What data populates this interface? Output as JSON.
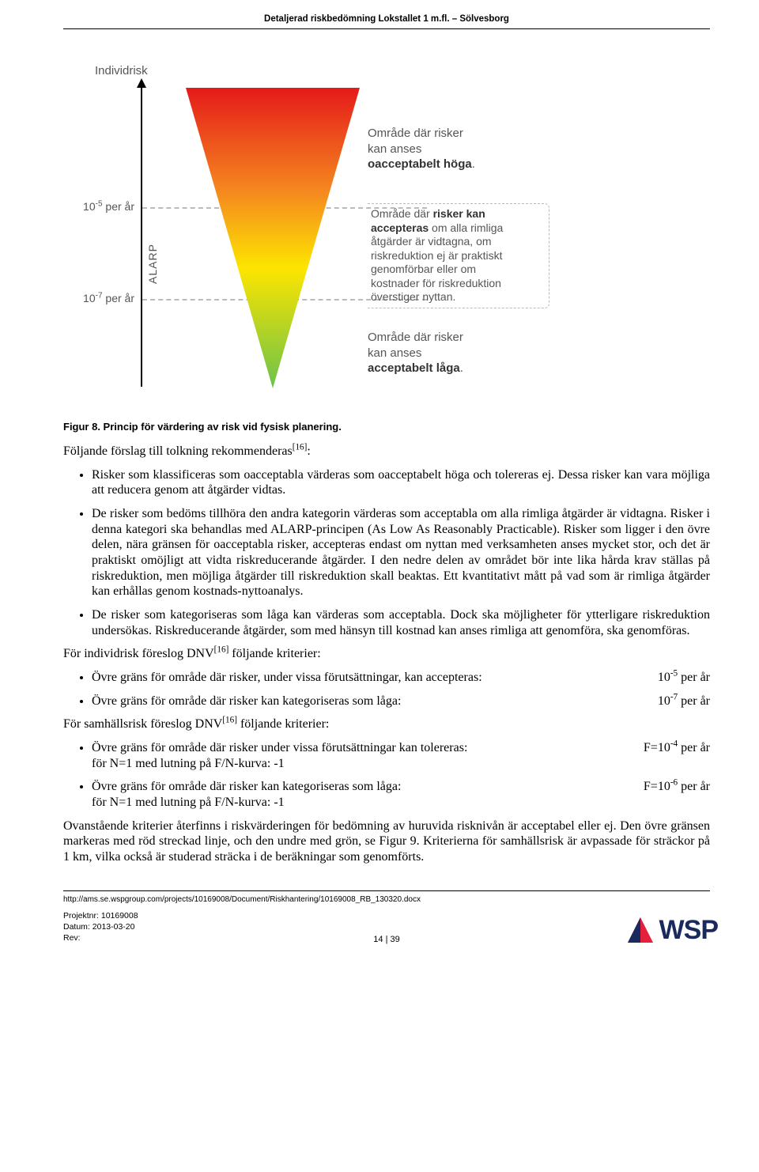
{
  "header": "Detaljerad riskbedömning Lokstallet 1 m.fl. – Sölvesborg",
  "diagram": {
    "y_title": "Individrisk",
    "tick1_html": "10<sup>-5</sup> per år",
    "tick2_html": "10<sup>-7</sup> per år",
    "alarp": "ALARP",
    "colors": {
      "red": "#e51a1a",
      "orange": "#f58a1f",
      "yellow": "#fde500",
      "green": "#6cc24a"
    },
    "annot1_html": "Område där risker<br>kan anses<br><b>oacceptabelt höga</b>.",
    "annot2_html": "Område där <b>risker kan<br>accepteras</b> om alla rimliga<br>åtgärder är vidtagna, om<br>riskreduktion ej är praktiskt<br>genomförbar eller om<br>kostnader för riskreduktion<br>överstiger nyttan.",
    "annot3_html": "Område där risker<br>kan anses<br><b>acceptabelt låga</b>."
  },
  "fig_caption": "Figur 8. Princip för värdering av risk vid fysisk planering.",
  "intro_html": "Följande förslag till tolkning rekommenderas<sup>[16]</sup>:",
  "bullets_main": [
    "Risker som klassificeras som oacceptabla värderas som oacceptabelt höga och tolereras ej. Dessa risker kan vara möjliga att reducera genom att åtgärder vidtas.",
    "De risker som bedöms tillhöra den andra kategorin värderas som acceptabla om alla rimliga åtgärder är vidtagna. Risker i denna kategori ska behandlas med ALARP-principen (As Low As Reasonably Practicable). Risker som ligger i den övre delen, nära gränsen för oacceptabla risker, accepteras endast om nyttan med verksamheten anses mycket stor, och det är praktiskt omöjligt att vidta riskreducerande åtgärder. I den nedre delen av området bör inte lika hårda krav ställas på riskreduktion, men möjliga åtgärder till riskreduktion skall beaktas. Ett kvantitativt mått på vad som är rimliga åtgärder kan erhållas genom kostnads-nyttoanalys.",
    "De risker som kategoriseras som låga kan värderas som acceptabla. Dock ska möjligheter för ytterligare riskreduktion undersökas. Riskreducerande åtgärder, som med hänsyn till kostnad kan anses rimliga att genomföra, ska genomföras."
  ],
  "individ_title_html": "För individrisk föreslog DNV<sup>[16]</sup> följande kriterier:",
  "individ_items": [
    {
      "text": "Övre gräns för område där risker, under vissa förutsättningar, kan accepteras:",
      "val_html": "10<sup>-5</sup> per år"
    },
    {
      "text": "Övre gräns för område där risker kan kategoriseras som låga:",
      "val_html": "10<sup>-7</sup> per år"
    }
  ],
  "samhall_title_html": "För samhällsrisk föreslog DNV<sup>[16]</sup> följande kriterier:",
  "samhall_items": [
    {
      "text_html": "Övre gräns för område där risker under vissa förutsättningar kan tolereras:<br>för N=1 med lutning på F/N-kurva: -1",
      "val_html": "F=10<sup>-4</sup> per år"
    },
    {
      "text_html": "Övre gräns för område där risker kan kategoriseras som låga:<br>för N=1 med lutning på F/N-kurva: -1",
      "val_html": "F=10<sup>-6</sup> per år"
    }
  ],
  "closing": "Ovanstående kriterier återfinns i riskvärderingen för bedömning av huruvida risknivån är acceptabel eller ej. Den övre gränsen markeras med röd streckad linje, och den undre med grön, se Figur 9. Kriterierna för samhällsrisk är avpassade för sträckor på 1 km, vilka också är studerad sträcka i de beräkningar som genomförts.",
  "footer": {
    "url": "http://ams.se.wspgroup.com/projects/10169008/Document/Riskhantering/10169008_RB_130320.docx",
    "meta1": "Projektnr: 10169008",
    "meta2": "Datum: 2013-03-20",
    "meta3": "Rev:",
    "pagenum": "14 | 39",
    "logo_text": "WSP"
  }
}
